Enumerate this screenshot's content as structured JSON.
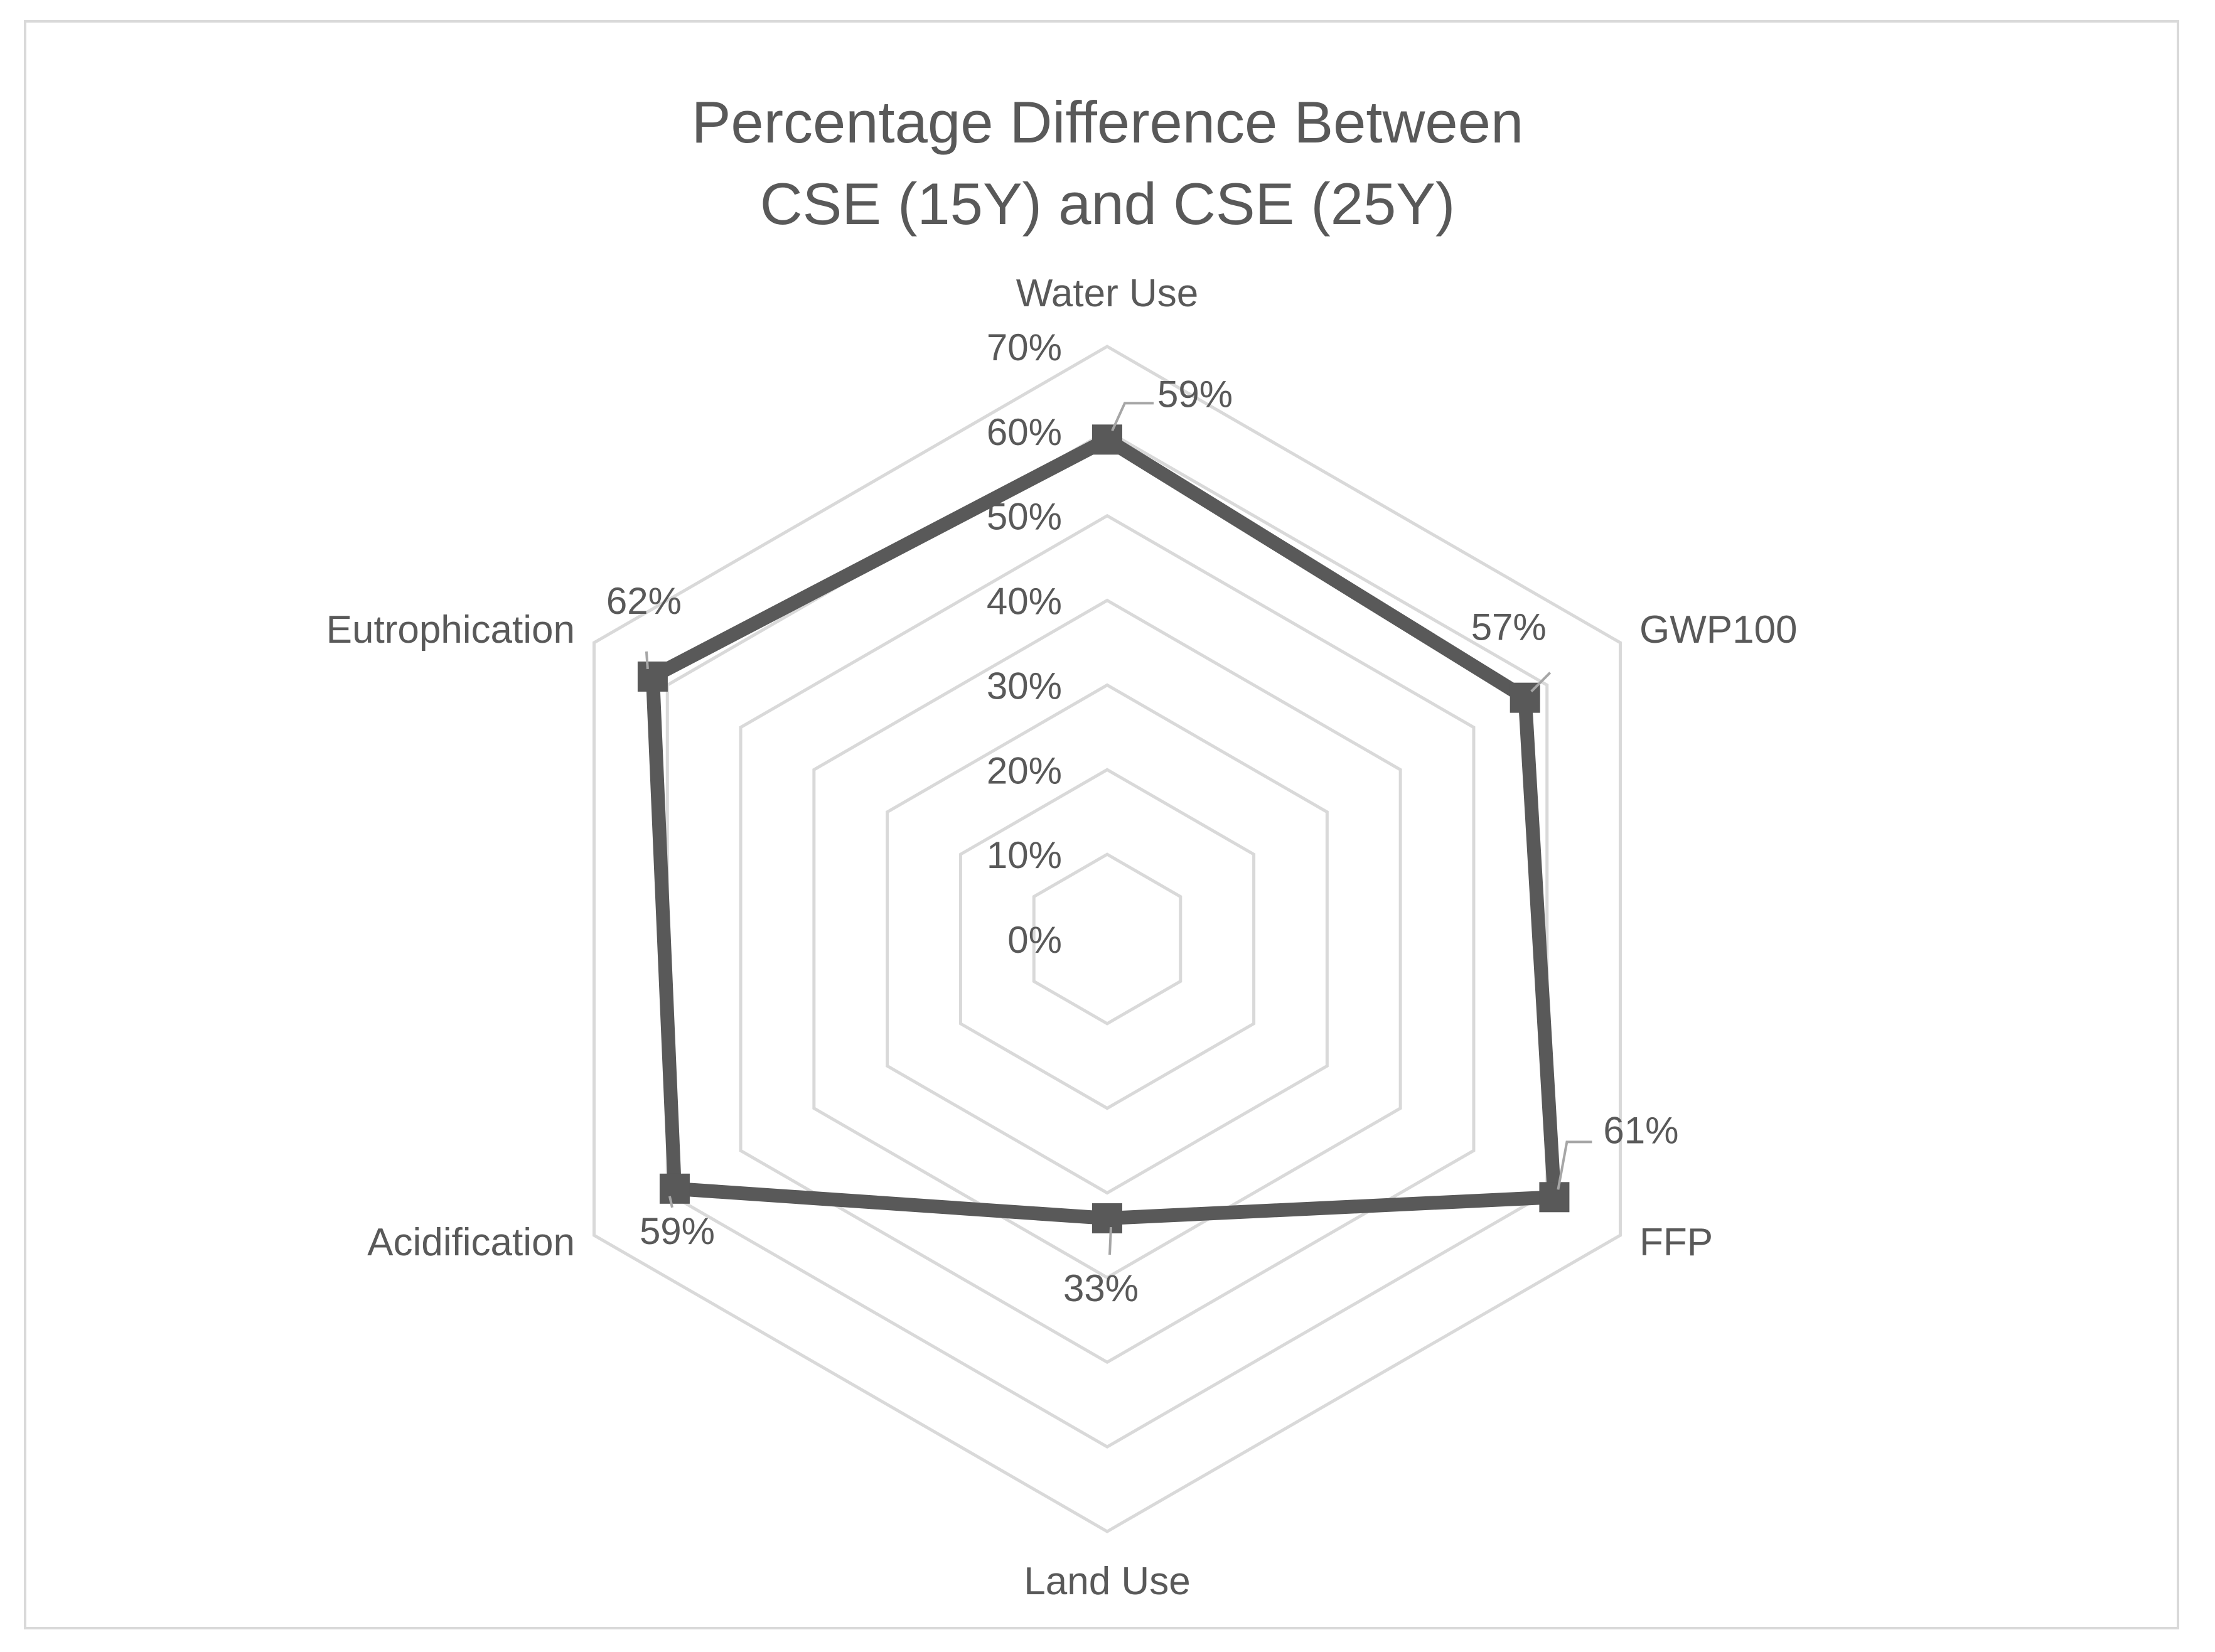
{
  "chart_data": {
    "type": "radar",
    "title_lines": [
      "Percentage Difference Between",
      "CSE (15Y) and CSE (25Y)"
    ],
    "categories": [
      "Water Use",
      "GWP100",
      "FFP",
      "Land Use",
      "Acidification",
      "Eutrophication"
    ],
    "series": [
      {
        "name": "Percentage Difference",
        "values": [
          0.59,
          0.57,
          0.61,
          0.33,
          0.59,
          0.62
        ],
        "data_labels": [
          "59%",
          "57%",
          "61%",
          "33%",
          "59%",
          "62%"
        ],
        "marker": "square"
      }
    ],
    "r_ticks": [
      "0%",
      "10%",
      "20%",
      "30%",
      "40%",
      "50%",
      "60%",
      "70%"
    ],
    "r_range": [
      0,
      0.7
    ],
    "grid": true,
    "legend": "none"
  },
  "colors": {
    "series": "#595959",
    "grid": "#d9d9d9",
    "text": "#595959",
    "frame": "#d9d9d9"
  }
}
